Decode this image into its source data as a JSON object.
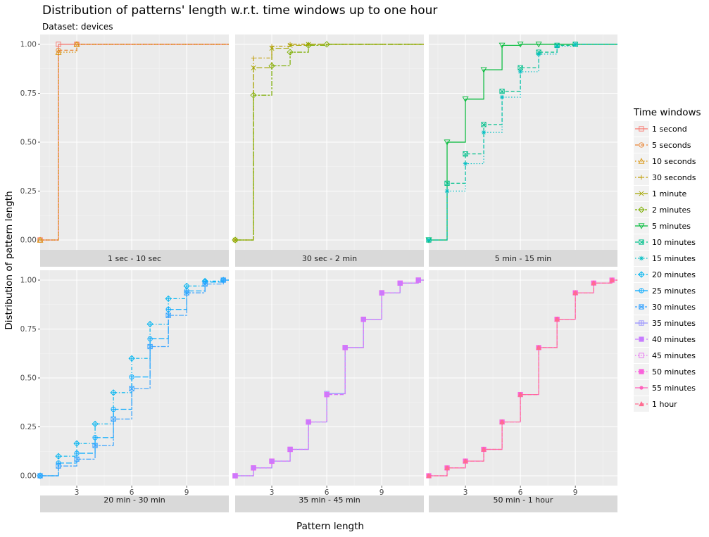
{
  "chart_data": {
    "type": "line",
    "title": "Distribution of patterns' length w.r.t. time windows up to one hour",
    "subtitle": "Dataset: devices",
    "xlabel": "Pattern length",
    "ylabel": "Distribution of pattern length",
    "xlim": [
      1,
      11.3
    ],
    "ylim": [
      0,
      1
    ],
    "x_ticks": [
      3,
      6,
      9
    ],
    "y_ticks": [
      0,
      0.25,
      0.5,
      0.75,
      1
    ],
    "y_tick_labels": [
      "0.00",
      "0.25",
      "0.50",
      "0.75",
      "1.00"
    ],
    "grid": true,
    "legend_position": "right",
    "legend_title": "Time windows",
    "series": [
      {
        "name": "1 second",
        "color": "#F8766D",
        "shape": "square-open",
        "line": "solid",
        "x": [
          1,
          2,
          3,
          11.3
        ],
        "y": [
          0,
          1.0,
          1.0,
          1.0
        ]
      },
      {
        "name": "5 seconds",
        "color": "#EA8331",
        "shape": "circle-open",
        "line": "dashed",
        "x": [
          1,
          2,
          3,
          11.3
        ],
        "y": [
          0,
          0.97,
          1.0,
          1.0
        ]
      },
      {
        "name": "10 seconds",
        "color": "#D89000",
        "shape": "triangle-open",
        "line": "dotted",
        "x": [
          1,
          2,
          3,
          11.3
        ],
        "y": [
          0,
          0.96,
          1.0,
          1.0
        ]
      },
      {
        "name": "30 seconds",
        "color": "#C09B00",
        "shape": "plus",
        "line": "dotdash",
        "x": [
          1,
          2,
          3,
          4,
          5,
          11.3
        ],
        "y": [
          0,
          0.93,
          0.99,
          1.0,
          1.0,
          1.0
        ]
      },
      {
        "name": "1 minute",
        "color": "#A3A500",
        "shape": "cross",
        "line": "longdash",
        "x": [
          1,
          2,
          3,
          4,
          5,
          11.3
        ],
        "y": [
          0,
          0.88,
          0.98,
          0.995,
          1.0,
          1.0
        ]
      },
      {
        "name": "2 minutes",
        "color": "#7CAE00",
        "shape": "diamond-open",
        "line": "twodash",
        "x": [
          1,
          2,
          3,
          4,
          5,
          6,
          11.3
        ],
        "y": [
          0,
          0.74,
          0.89,
          0.96,
          0.995,
          1.0,
          1.0
        ]
      },
      {
        "name": "5 minutes",
        "color": "#00BA38",
        "shape": "triangle-down-open",
        "line": "solid",
        "x": [
          1,
          2,
          3,
          4,
          5,
          6,
          7,
          11.3
        ],
        "y": [
          0,
          0.5,
          0.72,
          0.87,
          0.995,
          1.0,
          1.0,
          1.0
        ]
      },
      {
        "name": "10 minutes",
        "color": "#00C08B",
        "shape": "square-cross",
        "line": "dashed",
        "x": [
          1,
          2,
          3,
          4,
          5,
          6,
          7,
          8,
          9,
          11.3
        ],
        "y": [
          0,
          0.29,
          0.44,
          0.59,
          0.76,
          0.88,
          0.96,
          0.995,
          1.0,
          1.0
        ]
      },
      {
        "name": "15 minutes",
        "color": "#00BFC4",
        "shape": "asterisk",
        "line": "dotted",
        "x": [
          1,
          2,
          3,
          4,
          5,
          6,
          7,
          8,
          9,
          11.3
        ],
        "y": [
          0,
          0.25,
          0.39,
          0.55,
          0.73,
          0.86,
          0.95,
          0.99,
          1.0,
          1.0
        ]
      },
      {
        "name": "20 minutes",
        "color": "#00B4F0",
        "shape": "diamond-plus",
        "line": "dotdash",
        "x": [
          1,
          2,
          3,
          4,
          5,
          6,
          7,
          8,
          9,
          10,
          11,
          11.3
        ],
        "y": [
          0,
          0.1,
          0.165,
          0.265,
          0.425,
          0.6,
          0.775,
          0.905,
          0.97,
          0.995,
          1.0,
          1.0
        ]
      },
      {
        "name": "25 minutes",
        "color": "#00A9FF",
        "shape": "circle-plus",
        "line": "longdash",
        "x": [
          1,
          2,
          3,
          4,
          5,
          6,
          7,
          8,
          9,
          10,
          11,
          11.3
        ],
        "y": [
          0,
          0.065,
          0.115,
          0.195,
          0.34,
          0.505,
          0.7,
          0.85,
          0.945,
          0.99,
          1.0,
          1.0
        ]
      },
      {
        "name": "30 minutes",
        "color": "#35A2FF",
        "shape": "square-x",
        "line": "twodash",
        "x": [
          1,
          2,
          3,
          4,
          5,
          6,
          7,
          8,
          9,
          10,
          11,
          11.3
        ],
        "y": [
          0,
          0.05,
          0.085,
          0.155,
          0.29,
          0.445,
          0.66,
          0.82,
          0.935,
          0.98,
          1.0,
          1.0
        ]
      },
      {
        "name": "35 minutes",
        "color": "#9590FF",
        "shape": "square-plus",
        "line": "solid",
        "x": [
          1,
          2,
          3,
          4,
          5,
          6,
          7,
          8,
          9,
          10,
          11,
          11.3
        ],
        "y": [
          0,
          0.04,
          0.075,
          0.135,
          0.275,
          0.42,
          0.655,
          0.8,
          0.935,
          0.985,
          1.0,
          1.0
        ]
      },
      {
        "name": "40 minutes",
        "color": "#C77CFF",
        "shape": "square",
        "line": "dashed",
        "x": [
          1,
          2,
          3,
          4,
          5,
          6,
          7,
          8,
          9,
          10,
          11,
          11.3
        ],
        "y": [
          0,
          0.04,
          0.075,
          0.135,
          0.275,
          0.415,
          0.655,
          0.8,
          0.935,
          0.985,
          1.0,
          1.0
        ]
      },
      {
        "name": "45 minutes",
        "color": "#E76BF3",
        "shape": "square-open",
        "line": "dotted",
        "x": [
          1,
          2,
          3,
          4,
          5,
          6,
          7,
          8,
          9,
          10,
          11,
          11.3
        ],
        "y": [
          0,
          0.04,
          0.075,
          0.135,
          0.275,
          0.415,
          0.655,
          0.8,
          0.935,
          0.985,
          1.0,
          1.0
        ]
      },
      {
        "name": "50 minutes",
        "color": "#FA62DB",
        "shape": "square",
        "line": "dotted",
        "x": [
          1,
          2,
          3,
          4,
          5,
          6,
          7,
          8,
          9,
          10,
          11,
          11.3
        ],
        "y": [
          0,
          0.04,
          0.075,
          0.135,
          0.275,
          0.415,
          0.655,
          0.8,
          0.935,
          0.985,
          1.0,
          1.0
        ]
      },
      {
        "name": "55 minutes",
        "color": "#FF62BC",
        "shape": "dot",
        "line": "solid",
        "x": [
          1,
          2,
          3,
          4,
          5,
          6,
          7,
          8,
          9,
          10,
          11,
          11.3
        ],
        "y": [
          0,
          0.04,
          0.075,
          0.135,
          0.275,
          0.415,
          0.655,
          0.8,
          0.935,
          0.985,
          1.0,
          1.0
        ]
      },
      {
        "name": "1 hour",
        "color": "#FF6C91",
        "shape": "triangle",
        "line": "dashed",
        "x": [
          1,
          2,
          3,
          4,
          5,
          6,
          7,
          8,
          9,
          10,
          11,
          11.3
        ],
        "y": [
          0,
          0.04,
          0.075,
          0.135,
          0.275,
          0.415,
          0.655,
          0.8,
          0.935,
          0.985,
          1.0,
          1.0
        ]
      }
    ],
    "panels": [
      {
        "label": "1 sec - 10 sec",
        "series": [
          "1 second",
          "5 seconds",
          "10 seconds"
        ]
      },
      {
        "label": "30 sec - 2 min",
        "series": [
          "30 seconds",
          "1 minute",
          "2 minutes"
        ]
      },
      {
        "label": "5 min - 15 min",
        "series": [
          "5 minutes",
          "10 minutes",
          "15 minutes"
        ]
      },
      {
        "label": "20 min - 30 min",
        "series": [
          "20 minutes",
          "25 minutes",
          "30 minutes"
        ]
      },
      {
        "label": "35 min - 45 min",
        "series": [
          "35 minutes",
          "40 minutes",
          "45 minutes"
        ]
      },
      {
        "label": "50 min - 1 hour",
        "series": [
          "50 minutes",
          "55 minutes",
          "1 hour"
        ]
      }
    ]
  }
}
